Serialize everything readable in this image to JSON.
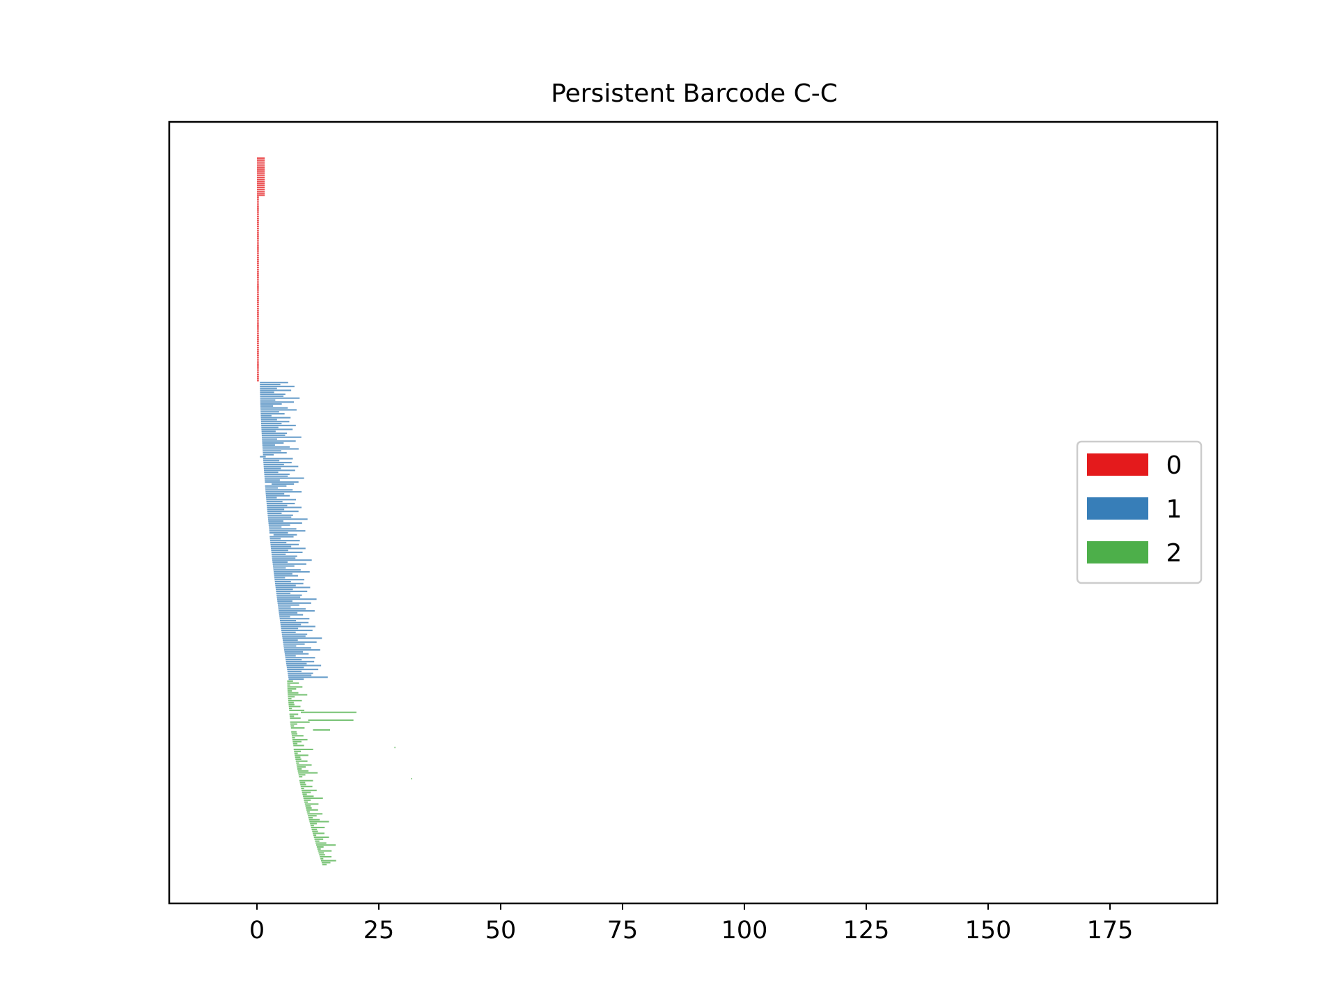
{
  "chart_data": {
    "type": "barcode",
    "title": "Persistent Barcode C-C",
    "xlabel": "",
    "ylabel": "",
    "xlim": [
      -18,
      197
    ],
    "xticks": [
      0,
      25,
      50,
      75,
      100,
      125,
      150,
      175
    ],
    "xtick_labels": [
      "0",
      "25",
      "50",
      "75",
      "100",
      "125",
      "150",
      "175"
    ],
    "yticks": [],
    "grid": false,
    "legend_position": "center-right",
    "legend": [
      {
        "label": "0",
        "color": "#e41a1c"
      },
      {
        "label": "1",
        "color": "#377eb8"
      },
      {
        "label": "2",
        "color": "#4daf4a"
      }
    ],
    "series": [
      {
        "name": "0",
        "color": "#e41a1c",
        "segments": [
          {
            "count": 20,
            "birth": 0,
            "death": 1.6
          },
          {
            "count": 95,
            "birth": 0,
            "death": 0.4
          }
        ]
      },
      {
        "name": "1",
        "color": "#377eb8",
        "birth_start": 0.6,
        "birth_end": 6.5,
        "death_pattern": [
          5.8,
          4.2,
          7.1,
          3.5,
          6.4,
          2.9,
          5.2,
          4.8,
          8.1,
          3.1,
          6.9,
          4.4,
          2.6,
          5.6,
          7.4,
          3.8,
          4.9,
          2.2,
          6.1,
          3.3
        ],
        "count": 150,
        "long_bars": [
          {
            "birth": 0.6,
            "death": 1.8
          },
          {
            "birth": 3.0,
            "death": 7.6
          },
          {
            "birth": 3.4,
            "death": 8.2
          }
        ]
      },
      {
        "name": "2",
        "color": "#4daf4a",
        "birth_start": 6.2,
        "birth_end": 13.4,
        "death_pattern": [
          1.2,
          2.4,
          0.6,
          3.1,
          1.8,
          0.9,
          2.2,
          4.0,
          1.4,
          0.7,
          2.8,
          1.1
        ],
        "count": 90,
        "long_bars": [
          {
            "birth": 9.0,
            "death": 20.4
          },
          {
            "birth": 10.5,
            "death": 19.8
          },
          {
            "birth": 11.5,
            "death": 15.0
          },
          {
            "birth": 28.2,
            "death": 28.4
          },
          {
            "birth": 31.6,
            "death": 31.8
          }
        ]
      }
    ]
  }
}
